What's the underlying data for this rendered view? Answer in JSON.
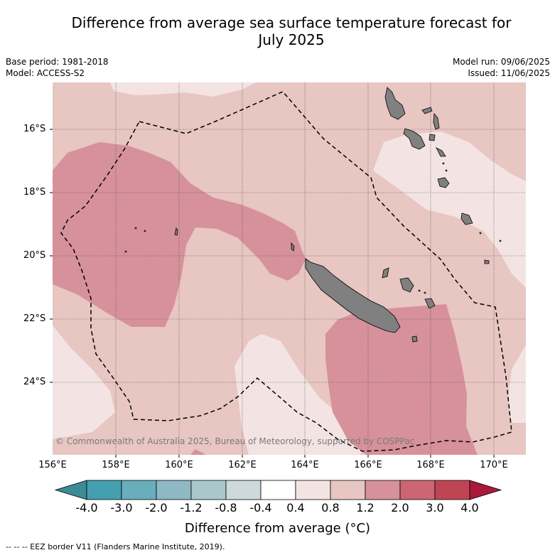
{
  "title_line1": "Difference from average sea surface temperature forecast for",
  "title_line2": "July 2025",
  "base_period": "Base period: 1981-2018",
  "model": "Model: ACCESS-S2",
  "model_run": "Model run: 09/06/2025",
  "issued": "Issued: 11/06/2025",
  "copyright": "© Commonwealth of Australia 2025, Bureau of Meteorology, supported by COSPPac",
  "lat_ticks": [
    "16°S",
    "18°S",
    "20°S",
    "22°S",
    "24°S"
  ],
  "lon_ticks": [
    "156°E",
    "158°E",
    "160°E",
    "162°E",
    "164°E",
    "166°E",
    "168°E",
    "170°E"
  ],
  "colorbar": {
    "labels": [
      "-4.0",
      "-3.0",
      "-2.0",
      "-1.2",
      "-0.8",
      "-0.4",
      "0.4",
      "0.8",
      "1.2",
      "2.0",
      "3.0",
      "4.0"
    ],
    "title": "Difference from average (°C)",
    "colors": {
      "under": "#3d8a98",
      "bins": [
        "#44a0b0",
        "#69aebc",
        "#8db8c4",
        "#aac8cc",
        "#cdd9da",
        "#ffffff",
        "#f3e4e3",
        "#e8c6c2",
        "#d6919a",
        "#cc6675",
        "#bf4555"
      ],
      "over": "#a8193a"
    }
  },
  "legend_note": "--  --  -- EEZ border V11 (Flanders Marine Institute, 2019).",
  "map_colors": {
    "band_0_4_to_0_8": "#f3e4e3",
    "band_0_8_to_1_2": "#e8c6c2",
    "band_1_2_to_2_0": "#d6919a",
    "land": "#808080"
  }
}
